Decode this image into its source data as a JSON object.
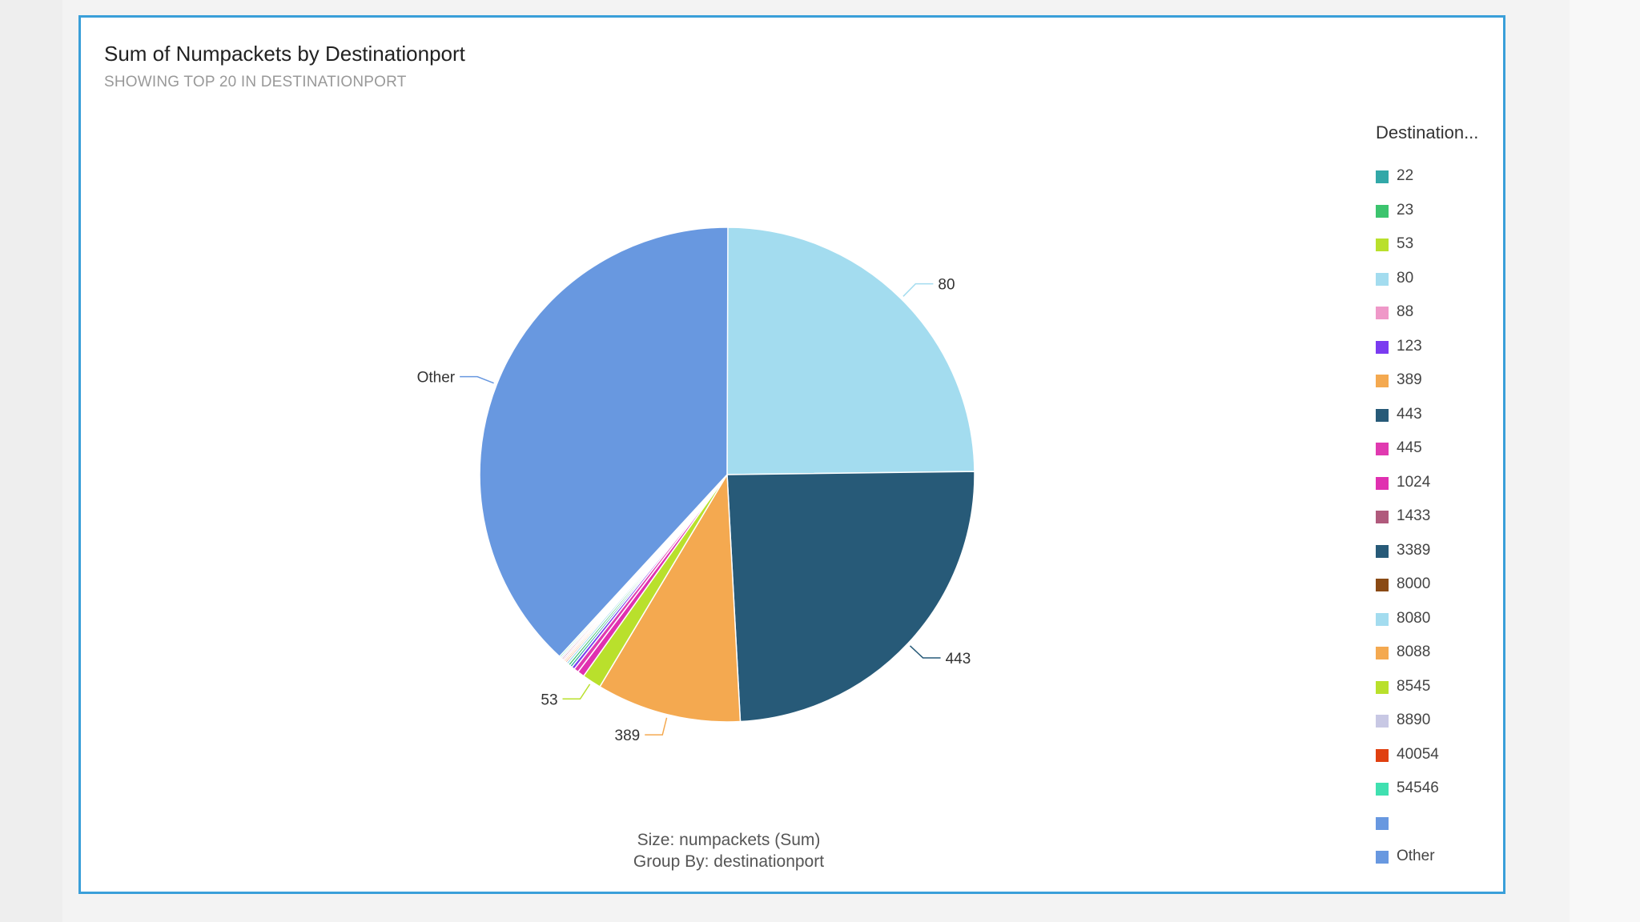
{
  "colors": {
    "card_border": "#3a9fd9",
    "background": "#f3f3f3"
  },
  "header": {
    "title": "Sum of Numpackets by Destinationport",
    "subtitle": "SHOWING TOP 20 IN DESTINATIONPORT"
  },
  "legend": {
    "title": "Destination...",
    "placement": "right",
    "items": [
      {
        "label": "22",
        "color": "#32a8a8"
      },
      {
        "label": "23",
        "color": "#3cc46e"
      },
      {
        "label": "53",
        "color": "#b9e02c"
      },
      {
        "label": "80",
        "color": "#a3dcef"
      },
      {
        "label": "88",
        "color": "#ef98c8"
      },
      {
        "label": "123",
        "color": "#7a3bf0"
      },
      {
        "label": "389",
        "color": "#f4a950"
      },
      {
        "label": "443",
        "color": "#275a78"
      },
      {
        "label": "445",
        "color": "#e03ab0"
      },
      {
        "label": "1024",
        "color": "#e030b0"
      },
      {
        "label": "1433",
        "color": "#b05a7c"
      },
      {
        "label": "3389",
        "color": "#275a78"
      },
      {
        "label": "8000",
        "color": "#8a4a14"
      },
      {
        "label": "8080",
        "color": "#a3dcef"
      },
      {
        "label": "8088",
        "color": "#f4a950"
      },
      {
        "label": "8545",
        "color": "#b9e02c"
      },
      {
        "label": "8890",
        "color": "#c8c8e4"
      },
      {
        "label": "40054",
        "color": "#e04010"
      },
      {
        "label": "54546",
        "color": "#40e0b0"
      },
      {
        "label": "",
        "color": "#6898e0"
      },
      {
        "label": "Other",
        "color": "#6898e0"
      }
    ]
  },
  "chart_data": {
    "type": "pie",
    "title": "Sum of Numpackets by Destinationport",
    "subtitle": "SHOWING TOP 20 IN DESTINATIONPORT",
    "start_angle_deg": 0,
    "direction": "clockwise",
    "slices": [
      {
        "category": "80",
        "share": 0.248,
        "color": "#a3dcef",
        "label": "80"
      },
      {
        "category": "443",
        "share": 0.2435,
        "color": "#275a78",
        "label": "443"
      },
      {
        "category": "389",
        "share": 0.0945,
        "color": "#f4a950",
        "label": "389"
      },
      {
        "category": "53",
        "share": 0.0125,
        "color": "#b9e02c",
        "label": "53"
      },
      {
        "category": "1024",
        "share": 0.0045,
        "color": "#e030b0",
        "label": ""
      },
      {
        "category": "445",
        "share": 0.003,
        "color": "#e03ab0",
        "label": ""
      },
      {
        "category": "123",
        "share": 0.002,
        "color": "#7a3bf0",
        "label": ""
      },
      {
        "category": "22",
        "share": 0.0015,
        "color": "#32a8a8",
        "label": ""
      },
      {
        "category": "23",
        "share": 0.0015,
        "color": "#3cc46e",
        "label": ""
      },
      {
        "category": "8080",
        "share": 0.0015,
        "color": "#a3dcef",
        "label": ""
      },
      {
        "category": "40054",
        "share": 0.001,
        "color": "#e04010",
        "label": ""
      },
      {
        "category": "8088",
        "share": 0.001,
        "color": "#f4a950",
        "label": ""
      },
      {
        "category": "88",
        "share": 0.001,
        "color": "#ef98c8",
        "label": ""
      },
      {
        "category": "1433",
        "share": 0.001,
        "color": "#b05a7c",
        "label": ""
      },
      {
        "category": "8890",
        "share": 0.001,
        "color": "#c8c8e4",
        "label": ""
      },
      {
        "category": "54546",
        "share": 0.001,
        "color": "#40e0b0",
        "label": ""
      },
      {
        "category": "Other",
        "share": 0.382,
        "color": "#6898e0",
        "label": "Other"
      }
    ],
    "size_caption": "Size: numpackets (Sum)",
    "group_caption": "Group By: destinationport"
  }
}
